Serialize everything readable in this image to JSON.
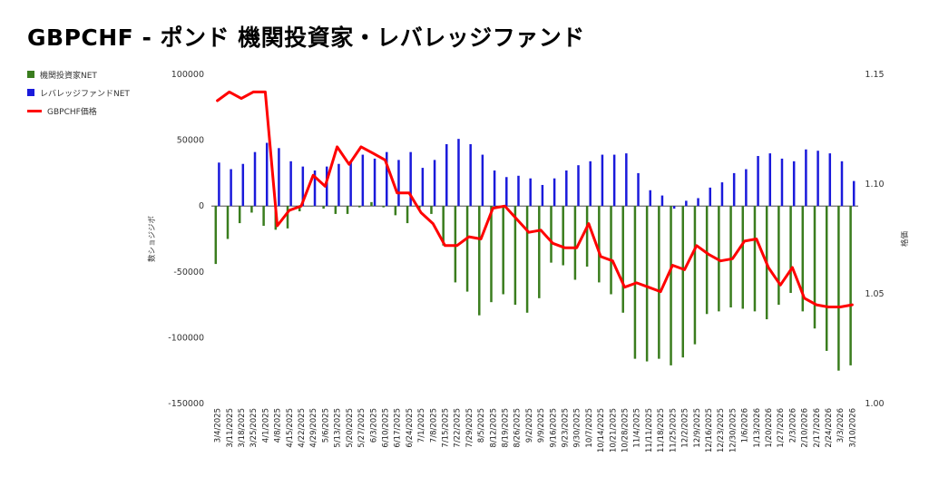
{
  "chart_data": {
    "type": "bar",
    "title": "GBPCHF - ポンド 機関投資家・レバレッジファンド",
    "ylabel": "数ショジジボ",
    "y2label": "格価",
    "ylim": [
      -150000,
      100000
    ],
    "y_ticks": [
      "100000",
      "50000",
      "0",
      "-50000",
      "-100000",
      "-150000"
    ],
    "y2lim": [
      1.0,
      1.15
    ],
    "y2_ticks": [
      "1.15",
      "1.10",
      "1.05",
      "1.00"
    ],
    "legend_position": "top-left",
    "categories": [
      "3/4/2025",
      "3/11/2025",
      "3/18/2025",
      "3/25/2025",
      "4/1/2025",
      "4/8/2025",
      "4/15/2025",
      "4/22/2025",
      "4/29/2025",
      "5/6/2025",
      "5/13/2025",
      "5/20/2025",
      "5/27/2025",
      "6/3/2025",
      "6/10/2025",
      "6/17/2025",
      "6/24/2025",
      "7/1/2025",
      "7/8/2025",
      "7/15/2025",
      "7/22/2025",
      "7/29/2025",
      "8/5/2025",
      "8/12/2025",
      "8/19/2025",
      "8/26/2025",
      "9/2/2025",
      "9/9/2025",
      "9/16/2025",
      "9/23/2025",
      "9/30/2025",
      "10/7/2025",
      "10/14/2025",
      "10/21/2025",
      "10/28/2025",
      "11/4/2025",
      "11/11/2025",
      "11/18/2025",
      "11/25/2025",
      "12/2/2025",
      "12/9/2025",
      "12/16/2025",
      "12/23/2025",
      "12/30/2025",
      "1/6/2026",
      "1/13/2026",
      "1/20/2026",
      "1/27/2026",
      "2/3/2026",
      "2/10/2026",
      "2/17/2026",
      "2/24/2026",
      "3/3/2026",
      "3/10/2026"
    ],
    "series": [
      {
        "name": "機関投資家NET",
        "kind": "bar",
        "axis": "left",
        "color": "#3a7d1e",
        "values": [
          -44000,
          -25000,
          -13000,
          -5000,
          -15000,
          -18000,
          -17000,
          -4000,
          0,
          -2000,
          -6000,
          -6000,
          -1000,
          3000,
          -1000,
          -7000,
          -13000,
          -2000,
          -6000,
          -30000,
          -58000,
          -65000,
          -83000,
          -73000,
          -67000,
          -75000,
          -81000,
          -70000,
          -43000,
          -45000,
          -56000,
          -46000,
          -58000,
          -67000,
          -81000,
          -116000,
          -118000,
          -116000,
          -121000,
          -115000,
          -105000,
          -82000,
          -80000,
          -77000,
          -78000,
          -80000,
          -86000,
          -75000,
          -66000,
          -80000,
          -93000,
          -110000,
          -125000,
          -121000
        ]
      },
      {
        "name": "レバレッジファンドNET",
        "kind": "bar",
        "axis": "left",
        "color": "#1a1adb",
        "values": [
          33000,
          28000,
          32000,
          41000,
          48000,
          44000,
          34000,
          30000,
          27000,
          30000,
          32000,
          34000,
          39000,
          36000,
          41000,
          35000,
          41000,
          29000,
          35000,
          47000,
          51000,
          47000,
          39000,
          27000,
          22000,
          23000,
          21000,
          16000,
          21000,
          27000,
          31000,
          34000,
          39000,
          39000,
          40000,
          25000,
          12000,
          8000,
          -2000,
          4000,
          6000,
          14000,
          18000,
          25000,
          28000,
          38000,
          40000,
          36000,
          34000,
          43000,
          42000,
          40000,
          34000,
          19000
        ]
      },
      {
        "name": "GBPCHF価格",
        "kind": "line",
        "axis": "right",
        "color": "#ff0000",
        "values": [
          1.138,
          1.142,
          1.139,
          1.142,
          1.142,
          1.081,
          1.088,
          1.09,
          1.104,
          1.099,
          1.117,
          1.109,
          1.117,
          1.114,
          1.111,
          1.096,
          1.096,
          1.087,
          1.082,
          1.072,
          1.072,
          1.076,
          1.075,
          1.089,
          1.09,
          1.084,
          1.078,
          1.079,
          1.073,
          1.071,
          1.071,
          1.082,
          1.067,
          1.065,
          1.053,
          1.055,
          1.053,
          1.051,
          1.063,
          1.061,
          1.072,
          1.068,
          1.065,
          1.066,
          1.074,
          1.075,
          1.062,
          1.054,
          1.062,
          1.048,
          1.045,
          1.044,
          1.044,
          1.045
        ]
      }
    ]
  }
}
